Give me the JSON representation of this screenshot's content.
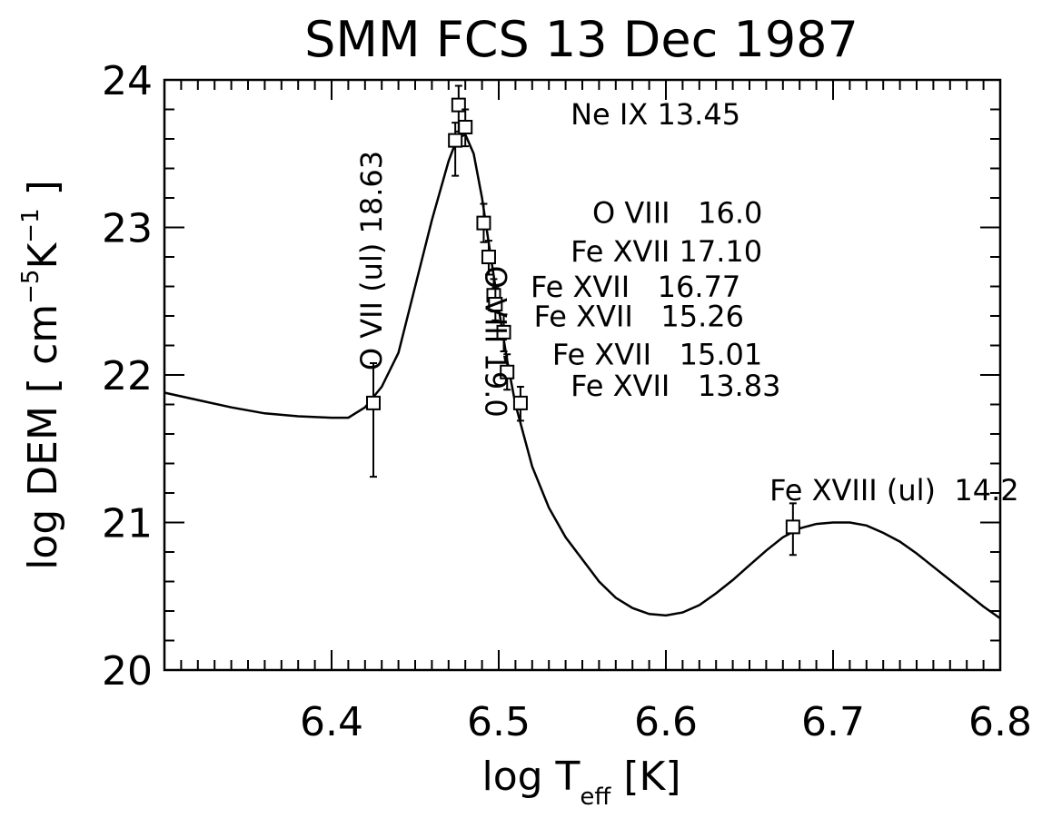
{
  "chart_data": {
    "type": "scatter",
    "title": "SMM FCS 13 Dec 1987",
    "xlabel": {
      "main": "log T",
      "sub": "eff",
      "unit": "[K]"
    },
    "ylabel": {
      "main": "log DEM",
      "unit": "[ cm",
      "exp1": "−5",
      "mid": "K",
      "exp2": "−1",
      "close": " ]"
    },
    "xlim": [
      6.3,
      6.8
    ],
    "ylim": [
      20,
      24
    ],
    "x_ticks": [
      6.4,
      6.5,
      6.6,
      6.7,
      6.8
    ],
    "x_tick_labels": [
      "6.4",
      "6.5",
      "6.6",
      "6.7",
      "6.8"
    ],
    "y_ticks": [
      20,
      21,
      22,
      23,
      24
    ],
    "y_tick_labels": [
      "20",
      "21",
      "22",
      "23",
      "24"
    ],
    "grid": false,
    "points": [
      {
        "x": 6.425,
        "y": 21.81,
        "err_lo": 21.31,
        "err_hi": 22.08
      },
      {
        "x": 6.474,
        "y": 23.59,
        "err_lo": 23.35,
        "err_hi": 23.71
      },
      {
        "x": 6.476,
        "y": 23.83,
        "err_lo": 23.65,
        "err_hi": 23.96
      },
      {
        "x": 6.48,
        "y": 23.68,
        "err_lo": 23.55,
        "err_hi": 23.8
      },
      {
        "x": 6.491,
        "y": 23.03,
        "err_lo": 22.9,
        "err_hi": 23.16
      },
      {
        "x": 6.494,
        "y": 22.8,
        "err_lo": 22.68,
        "err_hi": 22.91
      },
      {
        "x": 6.497,
        "y": 22.54,
        "err_lo": 22.43,
        "err_hi": 22.65
      },
      {
        "x": 6.498,
        "y": 22.48,
        "err_lo": 22.37,
        "err_hi": 22.59
      },
      {
        "x": 6.503,
        "y": 22.29,
        "err_lo": 22.16,
        "err_hi": 22.41
      },
      {
        "x": 6.505,
        "y": 22.02,
        "err_lo": 21.9,
        "err_hi": 22.14
      },
      {
        "x": 6.513,
        "y": 21.81,
        "err_lo": 21.69,
        "err_hi": 21.92
      },
      {
        "x": 6.676,
        "y": 20.97,
        "err_lo": 20.78,
        "err_hi": 21.13
      }
    ],
    "curve": {
      "x": [
        6.3,
        6.32,
        6.34,
        6.36,
        6.38,
        6.4,
        6.41,
        6.42,
        6.43,
        6.44,
        6.45,
        6.46,
        6.47,
        6.475,
        6.48,
        6.485,
        6.49,
        6.495,
        6.5,
        6.505,
        6.51,
        6.52,
        6.53,
        6.54,
        6.55,
        6.56,
        6.57,
        6.58,
        6.59,
        6.6,
        6.61,
        6.62,
        6.63,
        6.64,
        6.65,
        6.66,
        6.67,
        6.68,
        6.69,
        6.7,
        6.71,
        6.72,
        6.73,
        6.74,
        6.75,
        6.76,
        6.77,
        6.78,
        6.79,
        6.8
      ],
      "y": [
        21.88,
        21.83,
        21.78,
        21.74,
        21.72,
        21.71,
        21.71,
        21.78,
        21.92,
        22.15,
        22.6,
        23.05,
        23.45,
        23.6,
        23.63,
        23.5,
        23.2,
        22.82,
        22.45,
        22.1,
        21.8,
        21.38,
        21.1,
        20.9,
        20.75,
        20.6,
        20.49,
        20.42,
        20.38,
        20.37,
        20.39,
        20.44,
        20.52,
        20.61,
        20.71,
        20.81,
        20.9,
        20.96,
        20.99,
        21.0,
        21.0,
        20.98,
        20.93,
        20.87,
        20.79,
        20.7,
        20.61,
        20.52,
        20.43,
        20.35
      ]
    },
    "annotations": [
      {
        "text": "O VII (ul) 18.63",
        "x": 6.43,
        "y": 22.03,
        "rotate": -90
      },
      {
        "text": "O VIII 19.0",
        "x": 6.492,
        "y": 22.74,
        "rotate": 90
      },
      {
        "text": "Ne IX 13.45",
        "x": 6.543,
        "y": 23.7
      },
      {
        "text": "O VIII   16.0",
        "x": 6.556,
        "y": 23.03
      },
      {
        "text": "Fe XVII 17.10",
        "x": 6.543,
        "y": 22.77
      },
      {
        "text": "Fe XVII   16.77",
        "x": 6.519,
        "y": 22.53
      },
      {
        "text": "Fe XVII   15.26",
        "x": 6.521,
        "y": 22.33
      },
      {
        "text": "Fe XVII   15.01",
        "x": 6.532,
        "y": 22.07
      },
      {
        "text": "Fe XVII   13.83",
        "x": 6.543,
        "y": 21.86
      },
      {
        "text": "Fe XVIII (ul)  14.2",
        "x": 6.662,
        "y": 21.15
      }
    ]
  }
}
